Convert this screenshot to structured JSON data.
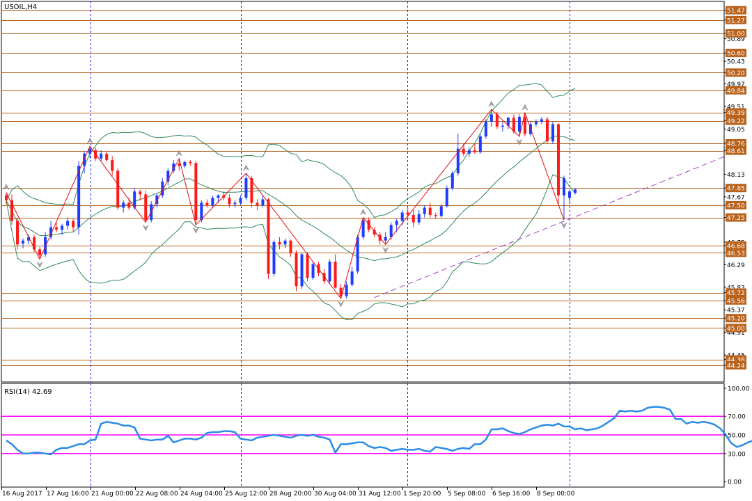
{
  "symbol_label": "USOIL,H4",
  "rsi_label": "RSI(14) 42.69",
  "colors": {
    "bull": "#1e3cff",
    "bear": "#ff1a1a",
    "hline": "#b8621c",
    "bands": "#2e8b57",
    "zigzag": "#e01010",
    "trend": "#a040c0",
    "rsi_line": "#2a8be6",
    "rsi_level": "#ff00ff",
    "grid_sep": "#1a1aff",
    "price_tag": "#b8621c"
  },
  "chart_data": [
    {
      "type": "candlestick",
      "title": "USOIL,H4",
      "ylim": [
        43.9,
        51.65
      ],
      "y_ticks": [
        "51.47",
        "51.27",
        "51.00",
        "50.89",
        "50.60",
        "50.43",
        "50.20",
        "49.97",
        "49.84",
        "49.51",
        "49.39",
        "49.22",
        "49.05",
        "48.76",
        "48.61",
        "48.13",
        "47.85",
        "47.67",
        "47.50",
        "47.25",
        "46.75",
        "46.68",
        "46.53",
        "46.29",
        "45.83",
        "45.72",
        "45.56",
        "45.37",
        "45.20",
        "45.00",
        "44.91",
        "44.45",
        "44.36",
        "44.24"
      ],
      "horizontal_levels": [
        51.47,
        51.27,
        51.0,
        50.6,
        50.2,
        49.84,
        49.39,
        49.22,
        48.76,
        48.61,
        47.85,
        47.5,
        47.25,
        46.68,
        46.53,
        45.72,
        45.56,
        45.2,
        45.0,
        44.36,
        44.24
      ],
      "level_tags": [
        "51.47",
        "51.27",
        "51.00",
        "50.60",
        "50.20",
        "49.84",
        "49.39",
        "49.22",
        "48.76",
        "48.61",
        "47.85",
        "47.50",
        "47.25",
        "46.68",
        "46.53",
        "45.72",
        "45.56",
        "45.20",
        "45.00",
        "44.36",
        "44.24"
      ],
      "x_labels": [
        "16 Aug 2017",
        "17 Aug 16:00",
        "21 Aug 00:00",
        "22 Aug 08:00",
        "24 Aug 04:00",
        "25 Aug 12:00",
        "28 Aug 20:00",
        "30 Aug 04:00",
        "31 Aug 12:00",
        "1 Sep 20:00",
        "5 Sep 08:00",
        "6 Sep 16:00",
        "8 Sep 00:00"
      ],
      "candles": [
        [
          47.7,
          47.76,
          47.52,
          47.6
        ],
        [
          47.6,
          47.72,
          47.1,
          47.18
        ],
        [
          47.18,
          47.25,
          46.6,
          46.7
        ],
        [
          46.72,
          46.82,
          46.62,
          46.78
        ],
        [
          46.78,
          46.9,
          46.7,
          46.85
        ],
        [
          46.85,
          46.9,
          46.55,
          46.6
        ],
        [
          46.6,
          46.65,
          46.4,
          46.48
        ],
        [
          46.5,
          46.95,
          46.45,
          46.85
        ],
        [
          46.85,
          47.18,
          46.8,
          47.05
        ],
        [
          47.05,
          47.15,
          46.95,
          47.0
        ],
        [
          47.0,
          47.12,
          46.9,
          47.08
        ],
        [
          47.08,
          47.25,
          47.0,
          47.18
        ],
        [
          47.18,
          47.22,
          46.95,
          47.05
        ],
        [
          47.05,
          48.4,
          46.9,
          48.3
        ],
        [
          48.3,
          48.6,
          48.15,
          48.55
        ],
        [
          48.55,
          48.7,
          48.45,
          48.65
        ],
        [
          48.62,
          48.68,
          48.4,
          48.45
        ],
        [
          48.45,
          48.62,
          48.4,
          48.55
        ],
        [
          48.55,
          48.6,
          48.38,
          48.42
        ],
        [
          48.42,
          48.5,
          48.1,
          48.2
        ],
        [
          48.2,
          48.25,
          47.4,
          47.45
        ],
        [
          47.45,
          47.6,
          47.35,
          47.55
        ],
        [
          47.55,
          47.65,
          47.4,
          47.45
        ],
        [
          47.45,
          47.85,
          47.4,
          47.78
        ],
        [
          47.78,
          47.82,
          47.6,
          47.72
        ],
        [
          47.72,
          47.8,
          47.15,
          47.2
        ],
        [
          47.2,
          47.58,
          47.15,
          47.52
        ],
        [
          47.52,
          47.75,
          47.45,
          47.7
        ],
        [
          47.7,
          48.05,
          47.65,
          47.98
        ],
        [
          47.98,
          48.25,
          47.9,
          48.2
        ],
        [
          48.2,
          48.42,
          48.15,
          48.35
        ],
        [
          48.35,
          48.45,
          48.2,
          48.3
        ],
        [
          48.3,
          48.4,
          48.25,
          48.38
        ],
        [
          48.38,
          48.42,
          48.3,
          48.36
        ],
        [
          48.36,
          48.4,
          47.1,
          47.2
        ],
        [
          47.2,
          47.6,
          47.15,
          47.55
        ],
        [
          47.55,
          47.62,
          47.45,
          47.5
        ],
        [
          47.5,
          47.7,
          47.45,
          47.65
        ],
        [
          47.65,
          47.72,
          47.55,
          47.7
        ],
        [
          47.7,
          47.78,
          47.6,
          47.65
        ],
        [
          47.65,
          47.72,
          47.45,
          47.52
        ],
        [
          47.52,
          47.6,
          47.45,
          47.55
        ],
        [
          47.55,
          47.7,
          47.5,
          47.65
        ],
        [
          47.65,
          48.15,
          47.6,
          48.05
        ],
        [
          48.05,
          48.1,
          47.45,
          47.55
        ],
        [
          47.55,
          47.62,
          47.4,
          47.5
        ],
        [
          47.5,
          47.7,
          47.45,
          47.62
        ],
        [
          47.62,
          47.65,
          46.0,
          46.1
        ],
        [
          46.1,
          46.8,
          46.05,
          46.75
        ],
        [
          46.75,
          46.85,
          46.6,
          46.7
        ],
        [
          46.7,
          46.82,
          46.62,
          46.78
        ],
        [
          46.78,
          46.8,
          46.45,
          46.52
        ],
        [
          46.52,
          46.58,
          45.75,
          45.85
        ],
        [
          45.85,
          46.52,
          45.8,
          46.5
        ],
        [
          46.5,
          46.55,
          45.95,
          46.02
        ],
        [
          46.02,
          46.35,
          45.98,
          46.3
        ],
        [
          46.3,
          46.35,
          46.05,
          46.12
        ],
        [
          46.12,
          46.2,
          45.9,
          45.95
        ],
        [
          45.95,
          46.4,
          45.9,
          46.35
        ],
        [
          46.35,
          46.5,
          45.8,
          45.82
        ],
        [
          45.82,
          45.9,
          45.6,
          45.65
        ],
        [
          45.65,
          45.95,
          45.6,
          45.88
        ],
        [
          45.88,
          46.25,
          45.85,
          46.15
        ],
        [
          46.15,
          46.9,
          46.1,
          46.85
        ],
        [
          46.85,
          47.25,
          46.8,
          47.2
        ],
        [
          47.2,
          47.25,
          46.95,
          47.0
        ],
        [
          47.0,
          47.05,
          46.85,
          46.9
        ],
        [
          46.9,
          46.95,
          46.7,
          46.78
        ],
        [
          46.78,
          46.95,
          46.7,
          46.85
        ],
        [
          46.85,
          47.15,
          46.8,
          47.1
        ],
        [
          47.1,
          47.22,
          46.95,
          47.18
        ],
        [
          47.18,
          47.4,
          47.1,
          47.35
        ],
        [
          47.35,
          47.45,
          47.25,
          47.3
        ],
        [
          47.3,
          47.4,
          47.05,
          47.15
        ],
        [
          47.15,
          47.4,
          47.1,
          47.32
        ],
        [
          47.32,
          47.5,
          47.25,
          47.45
        ],
        [
          47.45,
          47.55,
          47.25,
          47.3
        ],
        [
          47.3,
          47.35,
          47.22,
          47.28
        ],
        [
          47.28,
          47.52,
          47.25,
          47.48
        ],
        [
          47.48,
          47.9,
          47.45,
          47.85
        ],
        [
          47.85,
          48.2,
          47.8,
          48.15
        ],
        [
          48.15,
          48.95,
          48.1,
          48.65
        ],
        [
          48.65,
          48.75,
          48.5,
          48.55
        ],
        [
          48.55,
          48.68,
          48.48,
          48.62
        ],
        [
          48.62,
          48.75,
          48.55,
          48.58
        ],
        [
          48.58,
          48.95,
          48.55,
          48.9
        ],
        [
          48.9,
          49.25,
          48.85,
          49.2
        ],
        [
          49.2,
          49.45,
          49.1,
          49.35
        ],
        [
          49.35,
          49.4,
          49.05,
          49.1
        ],
        [
          49.1,
          49.2,
          49.0,
          49.12
        ],
        [
          49.12,
          49.3,
          49.05,
          49.28
        ],
        [
          49.28,
          49.35,
          48.95,
          49.0
        ],
        [
          49.0,
          49.35,
          48.9,
          49.3
        ],
        [
          49.3,
          49.38,
          48.9,
          48.95
        ],
        [
          48.95,
          49.2,
          48.9,
          49.15
        ],
        [
          49.15,
          49.25,
          49.1,
          49.2
        ],
        [
          49.2,
          49.3,
          49.15,
          49.25
        ],
        [
          49.25,
          49.3,
          48.75,
          48.8
        ],
        [
          48.8,
          49.2,
          48.75,
          49.15
        ],
        [
          49.15,
          49.18,
          47.5,
          47.7
        ],
        [
          47.7,
          48.1,
          47.2,
          48.05
        ],
        [
          47.65,
          47.8,
          47.55,
          47.78
        ],
        [
          47.75,
          47.85,
          47.72,
          47.82
        ]
      ]
    },
    {
      "type": "line",
      "title": "RSI(14) 42.69",
      "ylim": [
        0,
        100
      ],
      "y_ticks": [
        "100.00",
        "70.00",
        "50.00",
        "30.00",
        "0.00"
      ],
      "levels": [
        70,
        50,
        30
      ],
      "series": [
        {
          "values": [
            44,
            40,
            34,
            30,
            30,
            31,
            31,
            30,
            29,
            34,
            36,
            36,
            38,
            40,
            40,
            44,
            45,
            62,
            64,
            63,
            62,
            60,
            60,
            58,
            46,
            45,
            44,
            45,
            45,
            49,
            42,
            44,
            46,
            46,
            45,
            47,
            52,
            53,
            53,
            54,
            54,
            53,
            46,
            45,
            44,
            47,
            48,
            49,
            50,
            49,
            48,
            47,
            49,
            50,
            49,
            50,
            48,
            47,
            45,
            31,
            40,
            40,
            41,
            42,
            42,
            38,
            36,
            37,
            36,
            33,
            34,
            35,
            34,
            34,
            35,
            33,
            32,
            37,
            36,
            35,
            33,
            35,
            36,
            35,
            40,
            40,
            45,
            56,
            56,
            57,
            54,
            52,
            51,
            53,
            56,
            58,
            60,
            61,
            60,
            62,
            59,
            59,
            56,
            57,
            55,
            56,
            57,
            60,
            64,
            68,
            76,
            75,
            76,
            75,
            76,
            79,
            80,
            80,
            79,
            77,
            67,
            67,
            62,
            64,
            63,
            64,
            63,
            61,
            57,
            50,
            41,
            37,
            39,
            42,
            44
          ]
        }
      ]
    }
  ]
}
